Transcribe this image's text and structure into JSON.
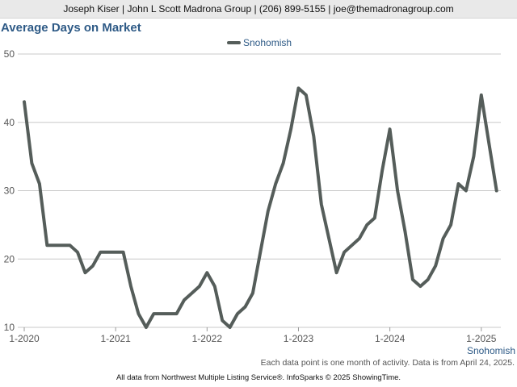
{
  "header": {
    "contact_line": "Joseph Kiser | John L Scott Madrona Group | (206) 899-5155 | joe@themadronagroup.com"
  },
  "chart_data": {
    "type": "line",
    "title": "Average Days on Market",
    "xlabel": "",
    "ylabel": "",
    "ylim": [
      10,
      50
    ],
    "yticks": [
      10,
      20,
      30,
      40,
      50
    ],
    "xlim": [
      "2020-01",
      "2025-03"
    ],
    "xticks": [
      "1-2020",
      "1-2021",
      "1-2022",
      "1-2023",
      "1-2024",
      "1-2025"
    ],
    "grid": "horizontal",
    "legend_position": "top-center",
    "colors": {
      "series": "#555d5a",
      "grid": "#c8c8c8",
      "legend_text": "#2e5a86",
      "title": "#2e5a86"
    },
    "x": [
      "2020-01",
      "2020-02",
      "2020-03",
      "2020-04",
      "2020-05",
      "2020-06",
      "2020-07",
      "2020-08",
      "2020-09",
      "2020-10",
      "2020-11",
      "2020-12",
      "2021-01",
      "2021-02",
      "2021-03",
      "2021-04",
      "2021-05",
      "2021-06",
      "2021-07",
      "2021-08",
      "2021-09",
      "2021-10",
      "2021-11",
      "2021-12",
      "2022-01",
      "2022-02",
      "2022-03",
      "2022-04",
      "2022-05",
      "2022-06",
      "2022-07",
      "2022-08",
      "2022-09",
      "2022-10",
      "2022-11",
      "2022-12",
      "2023-01",
      "2023-02",
      "2023-03",
      "2023-04",
      "2023-05",
      "2023-06",
      "2023-07",
      "2023-08",
      "2023-09",
      "2023-10",
      "2023-11",
      "2023-12",
      "2024-01",
      "2024-02",
      "2024-03",
      "2024-04",
      "2024-05",
      "2024-06",
      "2024-07",
      "2024-08",
      "2024-09",
      "2024-10",
      "2024-11",
      "2024-12",
      "2025-01",
      "2025-02",
      "2025-03"
    ],
    "series": [
      {
        "name": "Snohomish",
        "values": [
          43,
          34,
          31,
          22,
          22,
          22,
          22,
          21,
          18,
          19,
          21,
          21,
          21,
          21,
          16,
          12,
          10,
          12,
          12,
          12,
          12,
          14,
          15,
          16,
          18,
          16,
          11,
          10,
          12,
          13,
          15,
          21,
          27,
          31,
          34,
          39,
          45,
          44,
          38,
          28,
          23,
          18,
          21,
          22,
          23,
          25,
          26,
          33,
          39,
          30,
          24,
          17,
          16,
          17,
          19,
          23,
          25,
          31,
          30,
          35,
          44,
          37,
          30
        ]
      }
    ],
    "x_axis_series_label": "Snohomish"
  },
  "notes": {
    "data_note": "Each data point is one month of activity. Data is from April 24, 2025.",
    "source": "All data from Northwest Multiple Listing Service®. InfoSparks © 2025 ShowingTime."
  }
}
